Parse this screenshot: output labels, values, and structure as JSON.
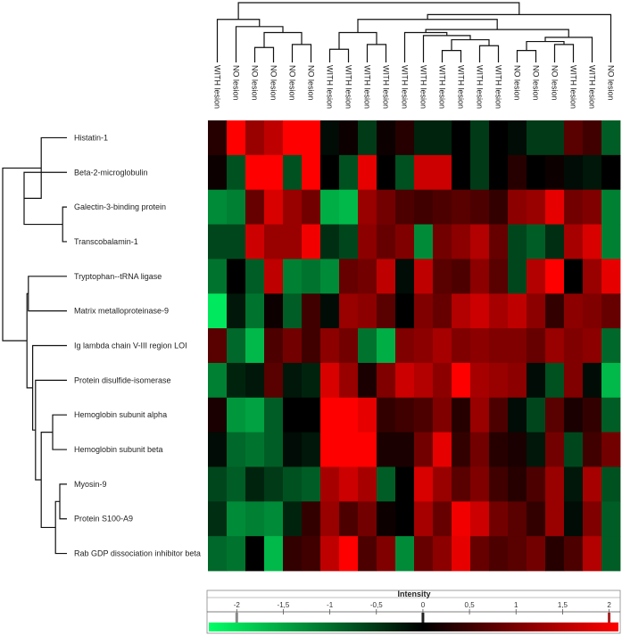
{
  "chart_data": {
    "type": "heatmap",
    "rows": [
      "Histatin-1",
      "Beta-2-microglobulin",
      "Galectin-3-binding protein",
      "Transcobalamin-1",
      "Tryptophan--tRNA ligase",
      "Matrix metalloproteinase-9",
      "Ig lambda chain V-III region LOI",
      "Protein disulfide-isomerase",
      "Hemoglobin subunit alpha",
      "Hemoglobin subunit beta",
      "Myosin-9",
      "Protein S100-A9",
      "Rab GDP dissociation inhibitor beta"
    ],
    "columns": [
      "WITH lesion",
      "NO lesion",
      "NO lesion",
      "NO lesion",
      "NO lesion",
      "NO lesion",
      "WITH lesion",
      "WITH lesion",
      "WITH lesion",
      "WITH lesion",
      "WITH lesion",
      "WITH lesion",
      "WITH lesion",
      "WITH lesion",
      "WITH lesion",
      "WITH lesion",
      "NO lesion",
      "NO lesion",
      "NO lesion",
      "WITH lesion",
      "WITH lesion",
      "NO lesion"
    ],
    "values": [
      [
        0.3,
        2.0,
        1.2,
        1.5,
        2.0,
        2.0,
        -0.1,
        0.1,
        -0.5,
        0.1,
        0.3,
        -0.3,
        -0.3,
        0.0,
        -0.5,
        0.0,
        -0.1,
        -0.5,
        -0.5,
        0.7,
        0.5,
        -0.8
      ],
      [
        0.1,
        -0.7,
        2.0,
        2.0,
        -0.7,
        2.0,
        0.0,
        -0.7,
        1.8,
        0.0,
        -0.7,
        1.6,
        1.6,
        0.0,
        -0.5,
        0.0,
        0.3,
        0.0,
        0.1,
        -0.1,
        -0.2,
        0.0
      ],
      [
        -1.2,
        -1.1,
        0.8,
        1.7,
        1.2,
        0.9,
        -1.5,
        -1.6,
        1.2,
        0.9,
        0.6,
        0.5,
        0.6,
        0.7,
        0.6,
        0.4,
        1.1,
        1.2,
        1.8,
        0.9,
        1.0,
        -1.1
      ],
      [
        -0.6,
        -0.6,
        1.6,
        1.2,
        1.2,
        1.9,
        -0.4,
        -0.6,
        1.1,
        0.8,
        1.0,
        -1.2,
        0.9,
        1.1,
        1.4,
        0.8,
        -0.6,
        -0.8,
        -0.4,
        1.3,
        1.7,
        -1.1
      ],
      [
        -1.0,
        0.0,
        -0.8,
        1.5,
        -1.1,
        -1.0,
        -1.2,
        0.8,
        0.9,
        1.5,
        -0.1,
        1.5,
        0.7,
        0.6,
        1.1,
        0.7,
        -0.6,
        1.4,
        2.0,
        0.0,
        1.2,
        1.8
      ],
      [
        -2.0,
        -0.2,
        -1.0,
        0.1,
        -0.8,
        0.5,
        -0.1,
        1.2,
        1.1,
        0.7,
        0.0,
        1.0,
        0.8,
        1.4,
        1.6,
        1.3,
        1.5,
        1.1,
        0.4,
        1.1,
        1.0,
        0.8
      ],
      [
        0.7,
        -0.9,
        -1.6,
        0.6,
        0.9,
        0.5,
        1.1,
        0.9,
        -1.0,
        -1.5,
        1.0,
        1.1,
        1.3,
        1.0,
        1.1,
        1.0,
        1.0,
        0.8,
        1.2,
        1.0,
        1.1,
        -0.9
      ],
      [
        -1.1,
        -0.3,
        -0.2,
        0.7,
        -0.2,
        -0.3,
        1.7,
        1.2,
        0.2,
        1.0,
        1.6,
        1.4,
        1.1,
        2.0,
        1.3,
        1.2,
        1.1,
        -0.1,
        -0.7,
        1.0,
        -0.1,
        -1.6
      ],
      [
        0.2,
        -1.3,
        -1.4,
        -0.8,
        0.0,
        0.0,
        2.0,
        2.0,
        1.8,
        0.4,
        0.5,
        0.6,
        1.0,
        0.3,
        1.2,
        0.6,
        -0.1,
        -0.6,
        0.7,
        0.2,
        0.4,
        -0.8
      ],
      [
        -0.1,
        -0.9,
        -1.0,
        -0.8,
        -0.1,
        -0.2,
        2.0,
        2.0,
        2.0,
        0.2,
        0.2,
        0.9,
        1.8,
        0.4,
        0.9,
        0.3,
        0.2,
        -0.2,
        0.9,
        -0.6,
        0.5,
        0.9
      ],
      [
        -0.6,
        -0.8,
        -0.3,
        -0.5,
        -0.7,
        -0.8,
        1.3,
        1.6,
        1.3,
        -0.8,
        0.0,
        1.7,
        1.2,
        0.7,
        1.0,
        0.5,
        0.3,
        0.6,
        1.2,
        -0.2,
        1.3,
        -0.7
      ],
      [
        -0.4,
        -1.2,
        -1.1,
        -1.2,
        -0.3,
        0.4,
        1.2,
        0.6,
        0.9,
        0.1,
        0.0,
        1.3,
        0.8,
        1.9,
        1.6,
        0.9,
        0.7,
        0.4,
        1.2,
        -0.1,
        1.0,
        -0.8
      ],
      [
        -0.9,
        -1.0,
        0.0,
        -1.6,
        0.4,
        0.5,
        1.5,
        2.0,
        0.6,
        1.0,
        -1.2,
        0.8,
        1.1,
        1.8,
        0.8,
        0.6,
        0.7,
        0.9,
        0.3,
        0.6,
        1.4,
        -0.8
      ]
    ],
    "colorscale": {
      "min": -2.3,
      "max": 2.1,
      "low": "#00ff66",
      "mid": "#000000",
      "high": "#ff0000"
    },
    "legend": {
      "title": "Intensity",
      "ticks": [
        -2,
        -1.5,
        -1,
        -0.5,
        0,
        0.5,
        1,
        1.5,
        2
      ],
      "tick_labels": [
        "-2",
        "-1,5",
        "-1",
        "-0,5",
        "0",
        "0,5",
        "1",
        "1,5",
        "2"
      ],
      "markers": [
        -2,
        0,
        2
      ]
    },
    "row_dendrogram": {
      "nodes": {
        "a": [
          8,
          9
        ],
        "b": [
          10,
          11
        ],
        "c": [
          "b",
          12
        ],
        "d": [
          "a",
          "c"
        ],
        "e": [
          7,
          "d"
        ],
        "f": [
          6,
          "e"
        ],
        "g": [
          4,
          5
        ],
        "h": [
          "g",
          "f"
        ],
        "i": [
          2,
          3
        ],
        "j": [
          1,
          "i"
        ],
        "k": [
          0,
          "j"
        ],
        "root": [
          "k",
          "h"
        ]
      },
      "heights": {
        "a": 0.1,
        "b": 0.05,
        "c": 0.08,
        "d": 0.18,
        "e": 0.22,
        "f": 0.24,
        "g": 0.27,
        "h": 0.28,
        "i": 0.03,
        "j": 0.3,
        "k": 0.18,
        "root": 0.45
      }
    },
    "col_dendrogram": {
      "nodes": {
        "p": [
          2,
          3
        ],
        "q": [
          4,
          5
        ],
        "r": [
          "p",
          "q"
        ],
        "s": [
          1,
          "r"
        ],
        "t": [
          0,
          "s"
        ],
        "u": [
          6,
          7
        ],
        "v": [
          8,
          9
        ],
        "w": [
          "u",
          "v"
        ],
        "x": [
          12,
          13
        ],
        "y": [
          14,
          15
        ],
        "z": [
          "x",
          "y"
        ],
        "aa": [
          11,
          "z"
        ],
        "bb": [
          10,
          "aa"
        ],
        "cc": [
          16,
          17
        ],
        "dd": [
          18,
          19
        ],
        "ee": [
          "cc",
          "dd"
        ],
        "ff": [
          "ee",
          20
        ],
        "gg": [
          "bb",
          "ff"
        ],
        "hh": [
          "w",
          "gg"
        ],
        "ii": [
          "hh",
          21
        ],
        "root": [
          "t",
          "ii"
        ]
      },
      "heights": {
        "p": 0.25,
        "q": 0.3,
        "r": 0.5,
        "s": 0.6,
        "t": 0.72,
        "u": 0.22,
        "v": 0.3,
        "w": 0.5,
        "x": 0.2,
        "y": 0.28,
        "z": 0.38,
        "aa": 0.45,
        "bb": 0.5,
        "cc": 0.2,
        "dd": 0.3,
        "ee": 0.35,
        "ff": 0.42,
        "gg": 0.55,
        "hh": 0.72,
        "ii": 0.8,
        "root": 1.0
      }
    }
  }
}
